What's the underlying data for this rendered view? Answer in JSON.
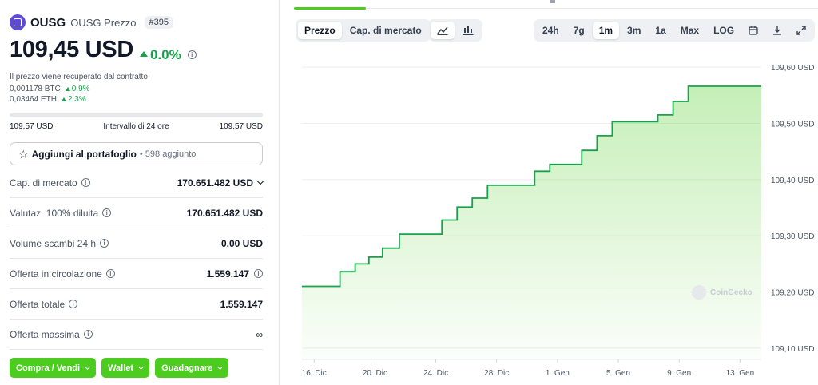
{
  "coin": {
    "symbol": "OUSG",
    "name": "OUSG Prezzo",
    "rank": "#395",
    "price": "109,45 USD",
    "change": "0.0%",
    "note": "Il prezzo viene recuperato dal contratto",
    "btc_value": "0,001178 BTC",
    "btc_change": "0.9%",
    "eth_value": "0,03464 ETH",
    "eth_change": "2.3%",
    "range_low": "109,57 USD",
    "range_label": "Intervallo di 24 ore",
    "range_high": "109,57 USD"
  },
  "portfolio": {
    "label": "Aggiungi al portafoglio",
    "count": "• 598 aggiunto"
  },
  "stats": [
    {
      "label": "Cap. di mercato",
      "value": "170.651.482 USD"
    },
    {
      "label": "Valutaz. 100% diluita",
      "value": "170.651.482 USD"
    },
    {
      "label": "Volume scambi 24 h",
      "value": "0,00 USD"
    },
    {
      "label": "Offerta in circolazione",
      "value": "1.559.147"
    },
    {
      "label": "Offerta totale",
      "value": "1.559.147"
    },
    {
      "label": "Offerta massima",
      "value": "∞"
    }
  ],
  "actions": {
    "buy_sell": "Compra / Vendi",
    "wallet": "Wallet",
    "earn": "Guadagnare"
  },
  "chart_tabs": {
    "price": "Prezzo",
    "market_cap": "Cap. di mercato"
  },
  "ranges": {
    "h24": "24h",
    "d7": "7g",
    "m1": "1m",
    "m3": "3m",
    "y1": "1a",
    "max": "Max",
    "log": "LOG"
  },
  "watermark": "CoinGecko",
  "colors": {
    "accent": "#4bcc1f",
    "line": "#16a34a",
    "positive": "#16a34a"
  },
  "chart_data": {
    "type": "area",
    "title": "",
    "xlabel": "",
    "ylabel": "",
    "x_ticks": [
      "16. Dic",
      "20. Dic",
      "24. Dic",
      "28. Dic",
      "1. Gen",
      "5. Gen",
      "9. Gen",
      "13. Gen"
    ],
    "y_ticks": [
      "109,60 USD",
      "109,50 USD",
      "109,40 USD",
      "109,30 USD",
      "109,20 USD",
      "109,10 USD"
    ],
    "y_tick_values": [
      109.6,
      109.5,
      109.4,
      109.3,
      109.2,
      109.1
    ],
    "ylim": [
      109.08,
      109.62
    ],
    "x_tick_days": [
      0,
      4,
      8,
      12,
      16,
      20,
      24,
      28
    ],
    "x_range": [
      -0.8,
      29.4
    ],
    "series": [
      {
        "x": [
          -0.8,
          1.7,
          1.7,
          2.7,
          2.7,
          3.6,
          3.6,
          4.5,
          4.5,
          5.6,
          5.6,
          8.4,
          8.4,
          9.4,
          9.4,
          10.4,
          10.4,
          11.4,
          11.4,
          14.5,
          14.5,
          15.5,
          15.5,
          17.6,
          17.6,
          18.6,
          18.6,
          19.6,
          19.6,
          22.6,
          22.6,
          23.6,
          23.6,
          24.6,
          24.6,
          26.6,
          26.6,
          29.4
        ],
        "y": [
          109.21,
          109.21,
          109.236,
          109.236,
          109.25,
          109.25,
          109.262,
          109.262,
          109.278,
          109.278,
          109.303,
          109.303,
          109.328,
          109.328,
          109.351,
          109.351,
          109.367,
          109.367,
          109.39,
          109.39,
          109.415,
          109.415,
          109.427,
          109.427,
          109.452,
          109.452,
          109.478,
          109.478,
          109.503,
          109.503,
          109.515,
          109.515,
          109.539,
          109.539,
          109.566,
          109.566,
          109.566,
          109.566
        ]
      }
    ],
    "grid": true,
    "legend": "none"
  }
}
